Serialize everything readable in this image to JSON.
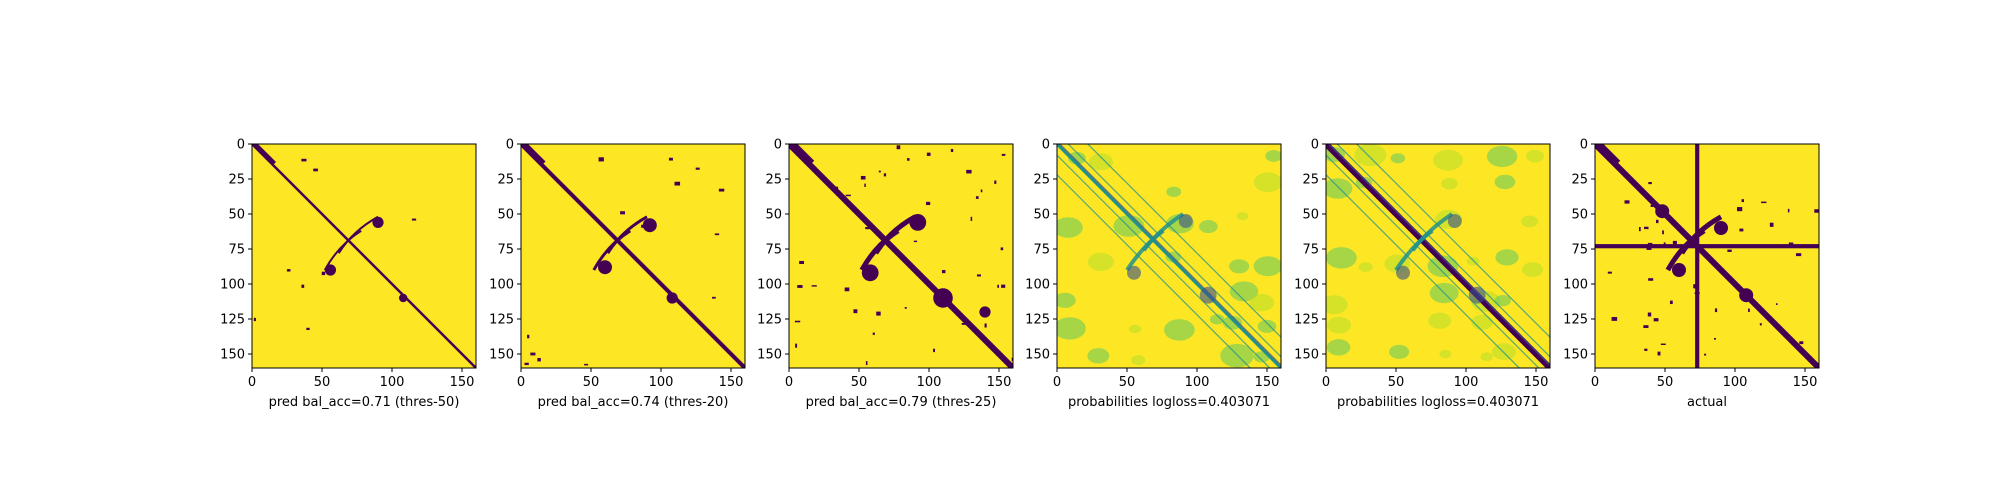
{
  "colors": {
    "dark": "#440154",
    "background": "#fde725",
    "teal": "#21918c",
    "green": "#5ec962",
    "yellowgreen": "#b5de2b",
    "blue": "#3b528b",
    "axis": "#000000"
  },
  "chart_data": [
    {
      "type": "heatmap",
      "matrix_size": 160,
      "xlabel": "pred bal_acc=0.71 (thres-50)",
      "xticks": [
        0,
        50,
        100,
        150
      ],
      "yticks": [
        0,
        25,
        50,
        75,
        100,
        125,
        150
      ],
      "xlim": [
        0,
        160
      ],
      "ylim": [
        160,
        0
      ],
      "colormap": "viridis",
      "values": "binary",
      "diagonal_band": "thin",
      "contact_features": [
        {
          "cx": 56,
          "cy": 90,
          "r": 4
        },
        {
          "cx": 90,
          "cy": 56,
          "r": 4
        },
        {
          "cx": 108,
          "cy": 110,
          "r": 3
        }
      ]
    },
    {
      "type": "heatmap",
      "matrix_size": 160,
      "xlabel": "pred bal_acc=0.74 (thres-20)",
      "xticks": [
        0,
        50,
        100,
        150
      ],
      "yticks": [
        0,
        25,
        50,
        75,
        100,
        125,
        150
      ],
      "xlim": [
        0,
        160
      ],
      "ylim": [
        160,
        0
      ],
      "colormap": "viridis",
      "values": "binary",
      "diagonal_band": "medium",
      "contact_features": [
        {
          "cx": 60,
          "cy": 88,
          "r": 5
        },
        {
          "cx": 92,
          "cy": 58,
          "r": 5
        },
        {
          "cx": 108,
          "cy": 110,
          "r": 4
        }
      ]
    },
    {
      "type": "heatmap",
      "matrix_size": 160,
      "xlabel": "pred bal_acc=0.79 (thres-25)",
      "xticks": [
        0,
        50,
        100,
        150
      ],
      "yticks": [
        0,
        25,
        50,
        75,
        100,
        125,
        150
      ],
      "xlim": [
        0,
        160
      ],
      "ylim": [
        160,
        0
      ],
      "colormap": "viridis",
      "values": "binary",
      "diagonal_band": "thick",
      "contact_features": [
        {
          "cx": 58,
          "cy": 92,
          "r": 6
        },
        {
          "cx": 92,
          "cy": 56,
          "r": 6
        },
        {
          "cx": 110,
          "cy": 110,
          "r": 7
        },
        {
          "cx": 140,
          "cy": 120,
          "r": 4
        }
      ]
    },
    {
      "type": "heatmap",
      "matrix_size": 160,
      "xlabel": "probabilities logloss=0.403071",
      "xticks": [
        0,
        50,
        100,
        150
      ],
      "yticks": [
        0,
        25,
        50,
        75,
        100,
        125,
        150
      ],
      "xlim": [
        0,
        160
      ],
      "ylim": [
        160,
        0
      ],
      "colormap": "viridis",
      "values": "continuous",
      "diagonal_band": "probabilities",
      "contact_features": [
        {
          "cx": 55,
          "cy": 92,
          "r": 5
        },
        {
          "cx": 92,
          "cy": 55,
          "r": 5
        },
        {
          "cx": 108,
          "cy": 108,
          "r": 6
        }
      ]
    },
    {
      "type": "heatmap",
      "matrix_size": 160,
      "xlabel": "probabilities logloss=0.403071",
      "xticks": [
        0,
        50,
        100,
        150
      ],
      "yticks": [
        0,
        25,
        50,
        75,
        100,
        125,
        150
      ],
      "xlim": [
        0,
        160
      ],
      "ylim": [
        160,
        0
      ],
      "colormap": "viridis",
      "values": "continuous",
      "diagonal_band": "probabilities-dark-diag",
      "contact_features": [
        {
          "cx": 55,
          "cy": 92,
          "r": 5
        },
        {
          "cx": 92,
          "cy": 55,
          "r": 5
        },
        {
          "cx": 108,
          "cy": 108,
          "r": 6
        }
      ]
    },
    {
      "type": "heatmap",
      "matrix_size": 160,
      "xlabel": "actual",
      "xticks": [
        0,
        50,
        100,
        150
      ],
      "yticks": [
        0,
        25,
        50,
        75,
        100,
        125,
        150
      ],
      "xlim": [
        0,
        160
      ],
      "ylim": [
        160,
        0
      ],
      "colormap": "viridis",
      "values": "binary",
      "diagonal_band": "thick",
      "cross_line_index": 73,
      "contact_features": [
        {
          "cx": 48,
          "cy": 48,
          "r": 5
        },
        {
          "cx": 108,
          "cy": 108,
          "r": 5
        },
        {
          "cx": 60,
          "cy": 90,
          "r": 5
        },
        {
          "cx": 90,
          "cy": 60,
          "r": 5
        }
      ]
    }
  ]
}
